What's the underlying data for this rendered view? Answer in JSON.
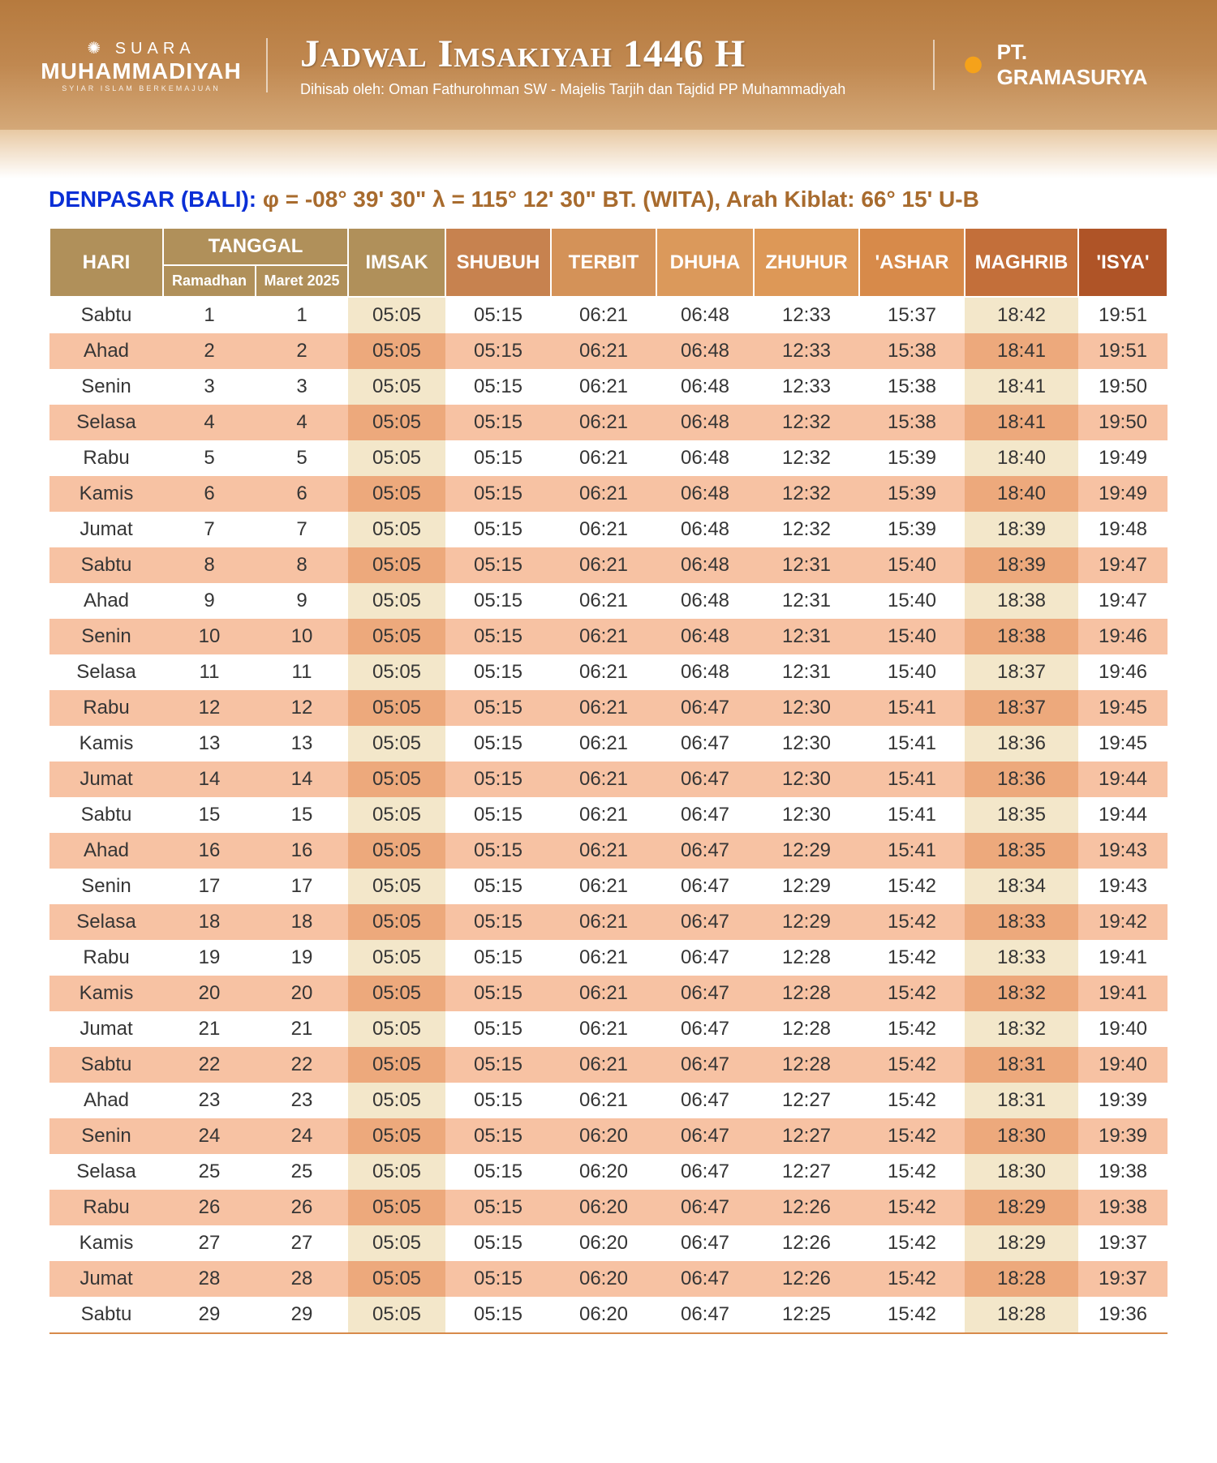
{
  "header": {
    "logo_left": {
      "line1": "✺ SUARA",
      "line2": "MUHAMMADIYAH",
      "tagline": "SYIAR ISLAM BERKEMAJUAN"
    },
    "title": "Jadwal Imsakiyah 1446 H",
    "subtitle": "Dihisab oleh: Oman Fathurohman SW - Majelis Tarjih dan Tajdid PP Muhammadiyah",
    "logo_right": "PT. GRAMASURYA"
  },
  "location": {
    "city": "DENPASAR (BALI):",
    "coords": "φ = -08° 39' 30\" λ = 115° 12' 30\" BT. (WITA), Arah Kiblat: 66° 15' U-B"
  },
  "columns": {
    "hari": "HARI",
    "tanggal": "TANGGAL",
    "ramadhan": "Ramadhan",
    "maret": "Maret 2025",
    "imsak": "IMSAK",
    "shubuh": "SHUBUH",
    "terbit": "TERBIT",
    "dhuha": "DHUHA",
    "zhuhur": "ZHUHUR",
    "ashar": "'ASHAR",
    "maghrib": "MAGHRIB",
    "isya": "'ISYA'"
  },
  "header_colors": {
    "hari": "#b0905a",
    "tanggal": "#b0905a",
    "imsak": "#b0905a",
    "shubuh": "#c7824f",
    "terbit": "#d49258",
    "dhuha": "#db995b",
    "zhuhur": "#dd9857",
    "ashar": "#d78a4a",
    "maghrib": "#c36f3a",
    "isya": "#af5427"
  },
  "stripe_colors": {
    "light_default": "#ffffff",
    "light_accent": "#f3e7ca",
    "dark_default": "#f7c2a3",
    "dark_accent": "#eda97c"
  },
  "rows": [
    {
      "hari": "Sabtu",
      "ram": "1",
      "mar": "1",
      "imsak": "05:05",
      "shubuh": "05:15",
      "terbit": "06:21",
      "dhuha": "06:48",
      "zhuhur": "12:33",
      "ashar": "15:37",
      "maghrib": "18:42",
      "isya": "19:51"
    },
    {
      "hari": "Ahad",
      "ram": "2",
      "mar": "2",
      "imsak": "05:05",
      "shubuh": "05:15",
      "terbit": "06:21",
      "dhuha": "06:48",
      "zhuhur": "12:33",
      "ashar": "15:38",
      "maghrib": "18:41",
      "isya": "19:51"
    },
    {
      "hari": "Senin",
      "ram": "3",
      "mar": "3",
      "imsak": "05:05",
      "shubuh": "05:15",
      "terbit": "06:21",
      "dhuha": "06:48",
      "zhuhur": "12:33",
      "ashar": "15:38",
      "maghrib": "18:41",
      "isya": "19:50"
    },
    {
      "hari": "Selasa",
      "ram": "4",
      "mar": "4",
      "imsak": "05:05",
      "shubuh": "05:15",
      "terbit": "06:21",
      "dhuha": "06:48",
      "zhuhur": "12:32",
      "ashar": "15:38",
      "maghrib": "18:41",
      "isya": "19:50"
    },
    {
      "hari": "Rabu",
      "ram": "5",
      "mar": "5",
      "imsak": "05:05",
      "shubuh": "05:15",
      "terbit": "06:21",
      "dhuha": "06:48",
      "zhuhur": "12:32",
      "ashar": "15:39",
      "maghrib": "18:40",
      "isya": "19:49"
    },
    {
      "hari": "Kamis",
      "ram": "6",
      "mar": "6",
      "imsak": "05:05",
      "shubuh": "05:15",
      "terbit": "06:21",
      "dhuha": "06:48",
      "zhuhur": "12:32",
      "ashar": "15:39",
      "maghrib": "18:40",
      "isya": "19:49"
    },
    {
      "hari": "Jumat",
      "ram": "7",
      "mar": "7",
      "imsak": "05:05",
      "shubuh": "05:15",
      "terbit": "06:21",
      "dhuha": "06:48",
      "zhuhur": "12:32",
      "ashar": "15:39",
      "maghrib": "18:39",
      "isya": "19:48"
    },
    {
      "hari": "Sabtu",
      "ram": "8",
      "mar": "8",
      "imsak": "05:05",
      "shubuh": "05:15",
      "terbit": "06:21",
      "dhuha": "06:48",
      "zhuhur": "12:31",
      "ashar": "15:40",
      "maghrib": "18:39",
      "isya": "19:47"
    },
    {
      "hari": "Ahad",
      "ram": "9",
      "mar": "9",
      "imsak": "05:05",
      "shubuh": "05:15",
      "terbit": "06:21",
      "dhuha": "06:48",
      "zhuhur": "12:31",
      "ashar": "15:40",
      "maghrib": "18:38",
      "isya": "19:47"
    },
    {
      "hari": "Senin",
      "ram": "10",
      "mar": "10",
      "imsak": "05:05",
      "shubuh": "05:15",
      "terbit": "06:21",
      "dhuha": "06:48",
      "zhuhur": "12:31",
      "ashar": "15:40",
      "maghrib": "18:38",
      "isya": "19:46"
    },
    {
      "hari": "Selasa",
      "ram": "11",
      "mar": "11",
      "imsak": "05:05",
      "shubuh": "05:15",
      "terbit": "06:21",
      "dhuha": "06:48",
      "zhuhur": "12:31",
      "ashar": "15:40",
      "maghrib": "18:37",
      "isya": "19:46"
    },
    {
      "hari": "Rabu",
      "ram": "12",
      "mar": "12",
      "imsak": "05:05",
      "shubuh": "05:15",
      "terbit": "06:21",
      "dhuha": "06:47",
      "zhuhur": "12:30",
      "ashar": "15:41",
      "maghrib": "18:37",
      "isya": "19:45"
    },
    {
      "hari": "Kamis",
      "ram": "13",
      "mar": "13",
      "imsak": "05:05",
      "shubuh": "05:15",
      "terbit": "06:21",
      "dhuha": "06:47",
      "zhuhur": "12:30",
      "ashar": "15:41",
      "maghrib": "18:36",
      "isya": "19:45"
    },
    {
      "hari": "Jumat",
      "ram": "14",
      "mar": "14",
      "imsak": "05:05",
      "shubuh": "05:15",
      "terbit": "06:21",
      "dhuha": "06:47",
      "zhuhur": "12:30",
      "ashar": "15:41",
      "maghrib": "18:36",
      "isya": "19:44"
    },
    {
      "hari": "Sabtu",
      "ram": "15",
      "mar": "15",
      "imsak": "05:05",
      "shubuh": "05:15",
      "terbit": "06:21",
      "dhuha": "06:47",
      "zhuhur": "12:30",
      "ashar": "15:41",
      "maghrib": "18:35",
      "isya": "19:44"
    },
    {
      "hari": "Ahad",
      "ram": "16",
      "mar": "16",
      "imsak": "05:05",
      "shubuh": "05:15",
      "terbit": "06:21",
      "dhuha": "06:47",
      "zhuhur": "12:29",
      "ashar": "15:41",
      "maghrib": "18:35",
      "isya": "19:43"
    },
    {
      "hari": "Senin",
      "ram": "17",
      "mar": "17",
      "imsak": "05:05",
      "shubuh": "05:15",
      "terbit": "06:21",
      "dhuha": "06:47",
      "zhuhur": "12:29",
      "ashar": "15:42",
      "maghrib": "18:34",
      "isya": "19:43"
    },
    {
      "hari": "Selasa",
      "ram": "18",
      "mar": "18",
      "imsak": "05:05",
      "shubuh": "05:15",
      "terbit": "06:21",
      "dhuha": "06:47",
      "zhuhur": "12:29",
      "ashar": "15:42",
      "maghrib": "18:33",
      "isya": "19:42"
    },
    {
      "hari": "Rabu",
      "ram": "19",
      "mar": "19",
      "imsak": "05:05",
      "shubuh": "05:15",
      "terbit": "06:21",
      "dhuha": "06:47",
      "zhuhur": "12:28",
      "ashar": "15:42",
      "maghrib": "18:33",
      "isya": "19:41"
    },
    {
      "hari": "Kamis",
      "ram": "20",
      "mar": "20",
      "imsak": "05:05",
      "shubuh": "05:15",
      "terbit": "06:21",
      "dhuha": "06:47",
      "zhuhur": "12:28",
      "ashar": "15:42",
      "maghrib": "18:32",
      "isya": "19:41"
    },
    {
      "hari": "Jumat",
      "ram": "21",
      "mar": "21",
      "imsak": "05:05",
      "shubuh": "05:15",
      "terbit": "06:21",
      "dhuha": "06:47",
      "zhuhur": "12:28",
      "ashar": "15:42",
      "maghrib": "18:32",
      "isya": "19:40"
    },
    {
      "hari": "Sabtu",
      "ram": "22",
      "mar": "22",
      "imsak": "05:05",
      "shubuh": "05:15",
      "terbit": "06:21",
      "dhuha": "06:47",
      "zhuhur": "12:28",
      "ashar": "15:42",
      "maghrib": "18:31",
      "isya": "19:40"
    },
    {
      "hari": "Ahad",
      "ram": "23",
      "mar": "23",
      "imsak": "05:05",
      "shubuh": "05:15",
      "terbit": "06:21",
      "dhuha": "06:47",
      "zhuhur": "12:27",
      "ashar": "15:42",
      "maghrib": "18:31",
      "isya": "19:39"
    },
    {
      "hari": "Senin",
      "ram": "24",
      "mar": "24",
      "imsak": "05:05",
      "shubuh": "05:15",
      "terbit": "06:20",
      "dhuha": "06:47",
      "zhuhur": "12:27",
      "ashar": "15:42",
      "maghrib": "18:30",
      "isya": "19:39"
    },
    {
      "hari": "Selasa",
      "ram": "25",
      "mar": "25",
      "imsak": "05:05",
      "shubuh": "05:15",
      "terbit": "06:20",
      "dhuha": "06:47",
      "zhuhur": "12:27",
      "ashar": "15:42",
      "maghrib": "18:30",
      "isya": "19:38"
    },
    {
      "hari": "Rabu",
      "ram": "26",
      "mar": "26",
      "imsak": "05:05",
      "shubuh": "05:15",
      "terbit": "06:20",
      "dhuha": "06:47",
      "zhuhur": "12:26",
      "ashar": "15:42",
      "maghrib": "18:29",
      "isya": "19:38"
    },
    {
      "hari": "Kamis",
      "ram": "27",
      "mar": "27",
      "imsak": "05:05",
      "shubuh": "05:15",
      "terbit": "06:20",
      "dhuha": "06:47",
      "zhuhur": "12:26",
      "ashar": "15:42",
      "maghrib": "18:29",
      "isya": "19:37"
    },
    {
      "hari": "Jumat",
      "ram": "28",
      "mar": "28",
      "imsak": "05:05",
      "shubuh": "05:15",
      "terbit": "06:20",
      "dhuha": "06:47",
      "zhuhur": "12:26",
      "ashar": "15:42",
      "maghrib": "18:28",
      "isya": "19:37"
    },
    {
      "hari": "Sabtu",
      "ram": "29",
      "mar": "29",
      "imsak": "05:05",
      "shubuh": "05:15",
      "terbit": "06:20",
      "dhuha": "06:47",
      "zhuhur": "12:25",
      "ashar": "15:42",
      "maghrib": "18:28",
      "isya": "19:36"
    }
  ]
}
